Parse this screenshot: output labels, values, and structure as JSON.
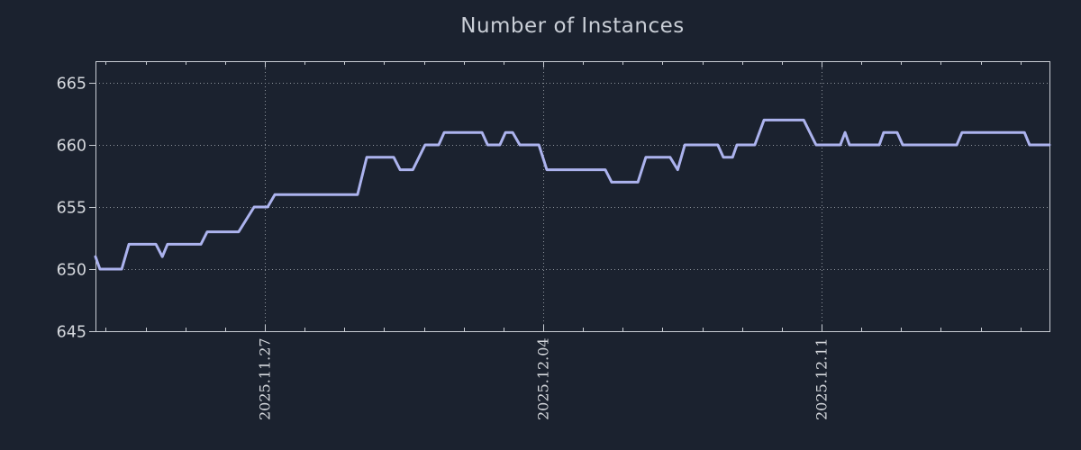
{
  "colors": {
    "background": "#1b222f",
    "axis_border": "#c9cdd4",
    "grid": "#8d939b",
    "tick_label": "#d5d8dd",
    "title": "#c9ced6",
    "line": "#acb3ee"
  },
  "chart_data": {
    "type": "line",
    "title": "Number of Instances",
    "xlabel": "",
    "ylabel": "",
    "legend": "none",
    "grid": "dotted",
    "x_axis": {
      "unit": "days relative to 2025-11-27",
      "range": [
        -4.26,
        19.73
      ],
      "minor_tick_interval": 1,
      "major_ticks": [
        {
          "pos": 0,
          "label": "2025.11.27"
        },
        {
          "pos": 7,
          "label": "2025.12.04"
        },
        {
          "pos": 14,
          "label": "2025.12.11"
        }
      ]
    },
    "y_axis": {
      "range": [
        645,
        666.74
      ],
      "ticks": [
        645,
        650,
        655,
        660,
        665
      ]
    },
    "series": [
      {
        "name": "instances",
        "color": "#acb3ee",
        "points": [
          [
            -4.26,
            651
          ],
          [
            -4.15,
            650
          ],
          [
            -3.6,
            650
          ],
          [
            -3.42,
            652
          ],
          [
            -2.74,
            652
          ],
          [
            -2.58,
            651
          ],
          [
            -2.45,
            652
          ],
          [
            -1.61,
            652
          ],
          [
            -1.45,
            653
          ],
          [
            -0.66,
            653
          ],
          [
            -0.27,
            655
          ],
          [
            0.07,
            655
          ],
          [
            0.25,
            656
          ],
          [
            2.33,
            656
          ],
          [
            2.56,
            659
          ],
          [
            3.24,
            659
          ],
          [
            3.4,
            658
          ],
          [
            3.72,
            658
          ],
          [
            4.03,
            660
          ],
          [
            4.37,
            660
          ],
          [
            4.51,
            661
          ],
          [
            5.46,
            661
          ],
          [
            5.6,
            660
          ],
          [
            5.91,
            660
          ],
          [
            6.05,
            661
          ],
          [
            6.23,
            661
          ],
          [
            6.41,
            660
          ],
          [
            6.89,
            660
          ],
          [
            7.09,
            658
          ],
          [
            8.56,
            658
          ],
          [
            8.72,
            657
          ],
          [
            9.38,
            657
          ],
          [
            9.58,
            659
          ],
          [
            10.19,
            659
          ],
          [
            10.38,
            658
          ],
          [
            10.56,
            660
          ],
          [
            11.39,
            660
          ],
          [
            11.53,
            659
          ],
          [
            11.76,
            659
          ],
          [
            11.87,
            660
          ],
          [
            12.32,
            660
          ],
          [
            12.55,
            662
          ],
          [
            13.55,
            662
          ],
          [
            13.86,
            660
          ],
          [
            14.47,
            660
          ],
          [
            14.59,
            661
          ],
          [
            14.7,
            660
          ],
          [
            15.45,
            660
          ],
          [
            15.56,
            661
          ],
          [
            15.9,
            661
          ],
          [
            16.04,
            660
          ],
          [
            17.4,
            660
          ],
          [
            17.53,
            661
          ],
          [
            19.1,
            661
          ],
          [
            19.23,
            660
          ],
          [
            19.73,
            660
          ]
        ]
      }
    ]
  }
}
